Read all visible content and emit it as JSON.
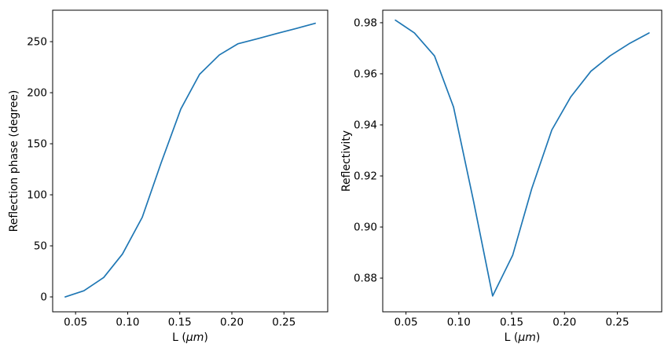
{
  "figure": {
    "background": "#ffffff",
    "line_color": "#1f77b4",
    "axis_color": "#000000",
    "text_color": "#000000"
  },
  "chart_data": [
    {
      "type": "line",
      "name": "reflection-phase-vs-L",
      "title": "",
      "xlabel": "L (μm)",
      "xlabel_parts": {
        "prefix": "L (",
        "italic": "μm",
        "suffix": ")"
      },
      "ylabel": "Reflection phase (degree)",
      "xlim": [
        0.028,
        0.292
      ],
      "ylim": [
        -14.6,
        280.8
      ],
      "xticks": [
        0.05,
        0.1,
        0.15,
        0.2,
        0.25
      ],
      "xtick_labels": [
        "0.05",
        "0.10",
        "0.15",
        "0.20",
        "0.25"
      ],
      "yticks": [
        0,
        50,
        100,
        150,
        200,
        250
      ],
      "ytick_labels": [
        "0",
        "50",
        "100",
        "150",
        "200",
        "250"
      ],
      "grid": false,
      "legend": null,
      "x": [
        0.04,
        0.058,
        0.077,
        0.095,
        0.114,
        0.132,
        0.151,
        0.169,
        0.188,
        0.206,
        0.225,
        0.243,
        0.262,
        0.28
      ],
      "y": [
        0,
        6,
        19,
        42,
        78,
        131,
        184,
        218,
        237,
        248,
        253,
        258,
        263,
        268
      ]
    },
    {
      "type": "line",
      "name": "reflectivity-vs-L",
      "title": "",
      "xlabel": "L (μm)",
      "xlabel_parts": {
        "prefix": "L (",
        "italic": "μm",
        "suffix": ")"
      },
      "ylabel": "Reflectivity",
      "xlim": [
        0.028,
        0.292
      ],
      "ylim": [
        0.8668,
        0.9849
      ],
      "xticks": [
        0.05,
        0.1,
        0.15,
        0.2,
        0.25
      ],
      "xtick_labels": [
        "0.05",
        "0.10",
        "0.15",
        "0.20",
        "0.25"
      ],
      "yticks": [
        0.88,
        0.9,
        0.92,
        0.94,
        0.96,
        0.98
      ],
      "ytick_labels": [
        "0.88",
        "0.90",
        "0.92",
        "0.94",
        "0.96",
        "0.98"
      ],
      "grid": false,
      "legend": null,
      "x": [
        0.04,
        0.058,
        0.077,
        0.095,
        0.114,
        0.132,
        0.151,
        0.169,
        0.188,
        0.206,
        0.225,
        0.243,
        0.262,
        0.28
      ],
      "y": [
        0.981,
        0.976,
        0.967,
        0.947,
        0.91,
        0.873,
        0.889,
        0.915,
        0.938,
        0.951,
        0.961,
        0.967,
        0.972,
        0.976
      ]
    }
  ]
}
